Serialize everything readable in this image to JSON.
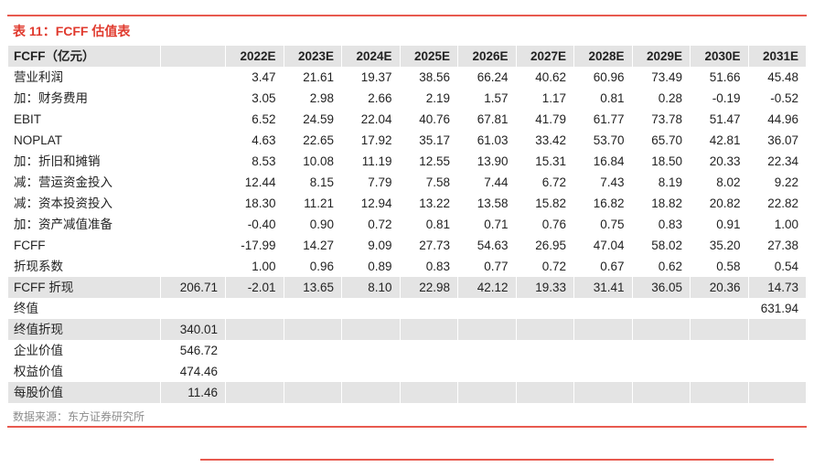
{
  "page": {
    "title": "表 11：FCFF 估值表",
    "source_note": "数据来源：东方证券研究所"
  },
  "colors": {
    "title_red": "#E03A2E",
    "divider_red": "#E85A4F",
    "highlight_row_gray": "#E4E4E4",
    "text_color": "#222222",
    "source_gray": "#8C8C8C"
  },
  "table": {
    "label_header": "FCFF（亿元）",
    "total_header": "",
    "year_headers": [
      "2022E",
      "2023E",
      "2024E",
      "2025E",
      "2026E",
      "2027E",
      "2028E",
      "2029E",
      "2030E",
      "2031E"
    ],
    "rows": [
      {
        "label": "营业利润",
        "total": "",
        "values": [
          "3.47",
          "21.61",
          "19.37",
          "38.56",
          "66.24",
          "40.62",
          "60.96",
          "73.49",
          "51.66",
          "45.48"
        ],
        "highlight": false
      },
      {
        "label": "加：财务费用",
        "total": "",
        "values": [
          "3.05",
          "2.98",
          "2.66",
          "2.19",
          "1.57",
          "1.17",
          "0.81",
          "0.28",
          "-0.19",
          "-0.52"
        ],
        "highlight": false
      },
      {
        "label": "EBIT",
        "total": "",
        "values": [
          "6.52",
          "24.59",
          "22.04",
          "40.76",
          "67.81",
          "41.79",
          "61.77",
          "73.78",
          "51.47",
          "44.96"
        ],
        "highlight": false
      },
      {
        "label": "NOPLAT",
        "total": "",
        "values": [
          "4.63",
          "22.65",
          "17.92",
          "35.17",
          "61.03",
          "33.42",
          "53.70",
          "65.70",
          "42.81",
          "36.07"
        ],
        "highlight": false
      },
      {
        "label": "加：折旧和摊销",
        "total": "",
        "values": [
          "8.53",
          "10.08",
          "11.19",
          "12.55",
          "13.90",
          "15.31",
          "16.84",
          "18.50",
          "20.33",
          "22.34"
        ],
        "highlight": false
      },
      {
        "label": "减：营运资金投入",
        "total": "",
        "values": [
          "12.44",
          "8.15",
          "7.79",
          "7.58",
          "7.44",
          "6.72",
          "7.43",
          "8.19",
          "8.02",
          "9.22"
        ],
        "highlight": false
      },
      {
        "label": "减：资本投资投入",
        "total": "",
        "values": [
          "18.30",
          "11.21",
          "12.94",
          "13.22",
          "13.58",
          "15.82",
          "16.82",
          "18.82",
          "20.82",
          "22.82"
        ],
        "highlight": false
      },
      {
        "label": "加：资产减值准备",
        "total": "",
        "values": [
          "-0.40",
          "0.90",
          "0.72",
          "0.81",
          "0.71",
          "0.76",
          "0.75",
          "0.83",
          "0.91",
          "1.00"
        ],
        "highlight": false
      },
      {
        "label": "FCFF",
        "total": "",
        "values": [
          "-17.99",
          "14.27",
          "9.09",
          "27.73",
          "54.63",
          "26.95",
          "47.04",
          "58.02",
          "35.20",
          "27.38"
        ],
        "highlight": false
      },
      {
        "label": "折现系数",
        "total": "",
        "values": [
          "1.00",
          "0.96",
          "0.89",
          "0.83",
          "0.77",
          "0.72",
          "0.67",
          "0.62",
          "0.58",
          "0.54"
        ],
        "highlight": false
      },
      {
        "label": "FCFF 折现",
        "total": "206.71",
        "values": [
          "-2.01",
          "13.65",
          "8.10",
          "22.98",
          "42.12",
          "19.33",
          "31.41",
          "36.05",
          "20.36",
          "14.73"
        ],
        "highlight": true
      },
      {
        "label": "终值",
        "total": "",
        "values": [
          "",
          "",
          "",
          "",
          "",
          "",
          "",
          "",
          "",
          "631.94"
        ],
        "highlight": false
      },
      {
        "label": "终值折现",
        "total": "340.01",
        "values": [
          "",
          "",
          "",
          "",
          "",
          "",
          "",
          "",
          "",
          ""
        ],
        "highlight": true
      },
      {
        "label": "企业价值",
        "total": "546.72",
        "values": [
          "",
          "",
          "",
          "",
          "",
          "",
          "",
          "",
          "",
          ""
        ],
        "highlight": false
      },
      {
        "label": "权益价值",
        "total": "474.46",
        "values": [
          "",
          "",
          "",
          "",
          "",
          "",
          "",
          "",
          "",
          ""
        ],
        "highlight": false
      },
      {
        "label": "每股价值",
        "total": "11.46",
        "values": [
          "",
          "",
          "",
          "",
          "",
          "",
          "",
          "",
          "",
          ""
        ],
        "highlight": true
      }
    ]
  }
}
